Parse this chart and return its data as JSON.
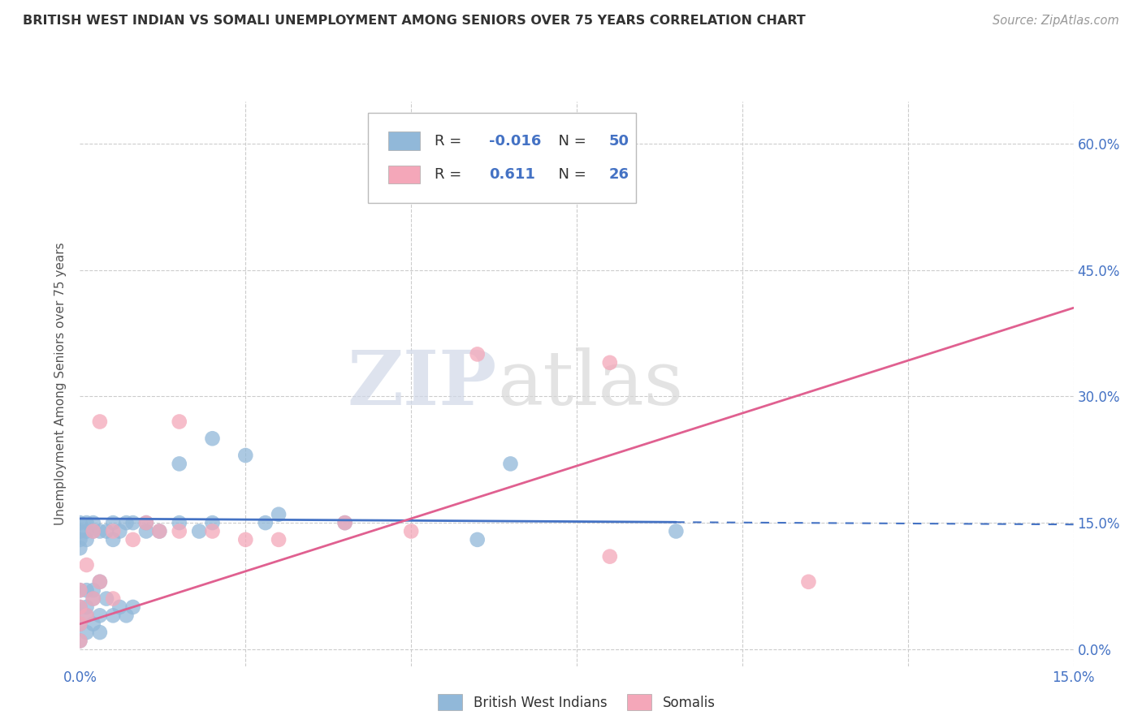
{
  "title": "BRITISH WEST INDIAN VS SOMALI UNEMPLOYMENT AMONG SENIORS OVER 75 YEARS CORRELATION CHART",
  "source": "Source: ZipAtlas.com",
  "ylabel": "Unemployment Among Seniors over 75 years",
  "xlim": [
    0.0,
    0.15
  ],
  "ylim": [
    -0.02,
    0.65
  ],
  "xtick_positions": [
    0.0,
    0.15
  ],
  "xtick_labels": [
    "0.0%",
    "15.0%"
  ],
  "ytick_positions": [
    0.0,
    0.15,
    0.3,
    0.45,
    0.6
  ],
  "ytick_labels": [
    "0.0%",
    "15.0%",
    "30.0%",
    "45.0%",
    "60.0%"
  ],
  "bwi_color": "#91b8d9",
  "somali_color": "#f4a7b9",
  "bwi_line_color": "#4472c4",
  "somali_line_color": "#e06090",
  "legend_r_bwi": "-0.016",
  "legend_n_bwi": "50",
  "legend_r_somali": "0.611",
  "legend_n_somali": "26",
  "watermark_zip": "ZIP",
  "watermark_atlas": "atlas",
  "bwi_line_solid_end": 0.09,
  "somali_line_y0": 0.03,
  "somali_line_y1": 0.405,
  "bwi_line_y0": 0.155,
  "bwi_line_y1": 0.148,
  "bwi_x": [
    0.0,
    0.0,
    0.0,
    0.0,
    0.0,
    0.0,
    0.0,
    0.0,
    0.001,
    0.001,
    0.001,
    0.001,
    0.001,
    0.001,
    0.002,
    0.002,
    0.002,
    0.002,
    0.003,
    0.003,
    0.003,
    0.004,
    0.004,
    0.005,
    0.005,
    0.005,
    0.006,
    0.006,
    0.007,
    0.007,
    0.008,
    0.008,
    0.01,
    0.01,
    0.012,
    0.015,
    0.015,
    0.018,
    0.02,
    0.02,
    0.025,
    0.028,
    0.03,
    0.04,
    0.06,
    0.065,
    0.09,
    0.001,
    0.002,
    0.003
  ],
  "bwi_y": [
    0.12,
    0.13,
    0.14,
    0.15,
    0.07,
    0.05,
    0.03,
    0.01,
    0.15,
    0.14,
    0.13,
    0.07,
    0.04,
    0.02,
    0.15,
    0.14,
    0.07,
    0.03,
    0.14,
    0.08,
    0.02,
    0.14,
    0.06,
    0.15,
    0.13,
    0.04,
    0.14,
    0.05,
    0.15,
    0.04,
    0.15,
    0.05,
    0.15,
    0.14,
    0.14,
    0.15,
    0.22,
    0.14,
    0.15,
    0.25,
    0.23,
    0.15,
    0.16,
    0.15,
    0.13,
    0.22,
    0.14,
    0.05,
    0.06,
    0.04
  ],
  "somali_x": [
    0.0,
    0.0,
    0.0,
    0.0,
    0.001,
    0.001,
    0.002,
    0.002,
    0.003,
    0.003,
    0.005,
    0.005,
    0.008,
    0.01,
    0.012,
    0.015,
    0.015,
    0.02,
    0.025,
    0.03,
    0.04,
    0.05,
    0.06,
    0.08,
    0.08,
    0.11
  ],
  "somali_y": [
    0.07,
    0.05,
    0.03,
    0.01,
    0.1,
    0.04,
    0.14,
    0.06,
    0.27,
    0.08,
    0.14,
    0.06,
    0.13,
    0.15,
    0.14,
    0.27,
    0.14,
    0.14,
    0.13,
    0.13,
    0.15,
    0.14,
    0.35,
    0.34,
    0.11,
    0.08
  ]
}
